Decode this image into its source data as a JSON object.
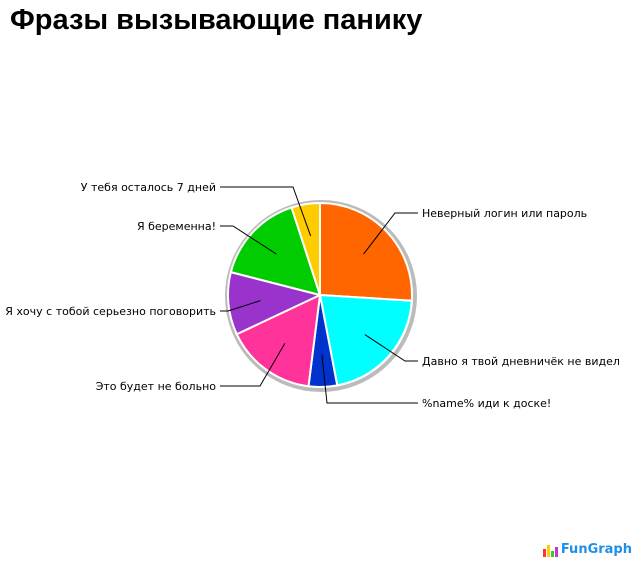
{
  "chart_data": {
    "type": "pie",
    "title": "Фразы вызывающие панику",
    "slices": [
      {
        "label": "Неверный логин или пароль",
        "value": 26,
        "color": "#ff6600"
      },
      {
        "label": "Давно я твой дневничёк не видел",
        "value": 21,
        "color": "#00ffff"
      },
      {
        "label": "%name% иди к доске!",
        "value": 5,
        "color": "#0033cc"
      },
      {
        "label": "Это будет не больно",
        "value": 16,
        "color": "#ff3399"
      },
      {
        "label": "Я хочу с тобой серьезно поговорить",
        "value": 11,
        "color": "#9933cc"
      },
      {
        "label": "Я беременна!",
        "value": 16,
        "color": "#00cc00"
      },
      {
        "label": "У тебя осталось 7 дней",
        "value": 5,
        "color": "#ffcc00"
      }
    ],
    "start": "top",
    "direction": "clockwise"
  },
  "logo": "FunGraph"
}
